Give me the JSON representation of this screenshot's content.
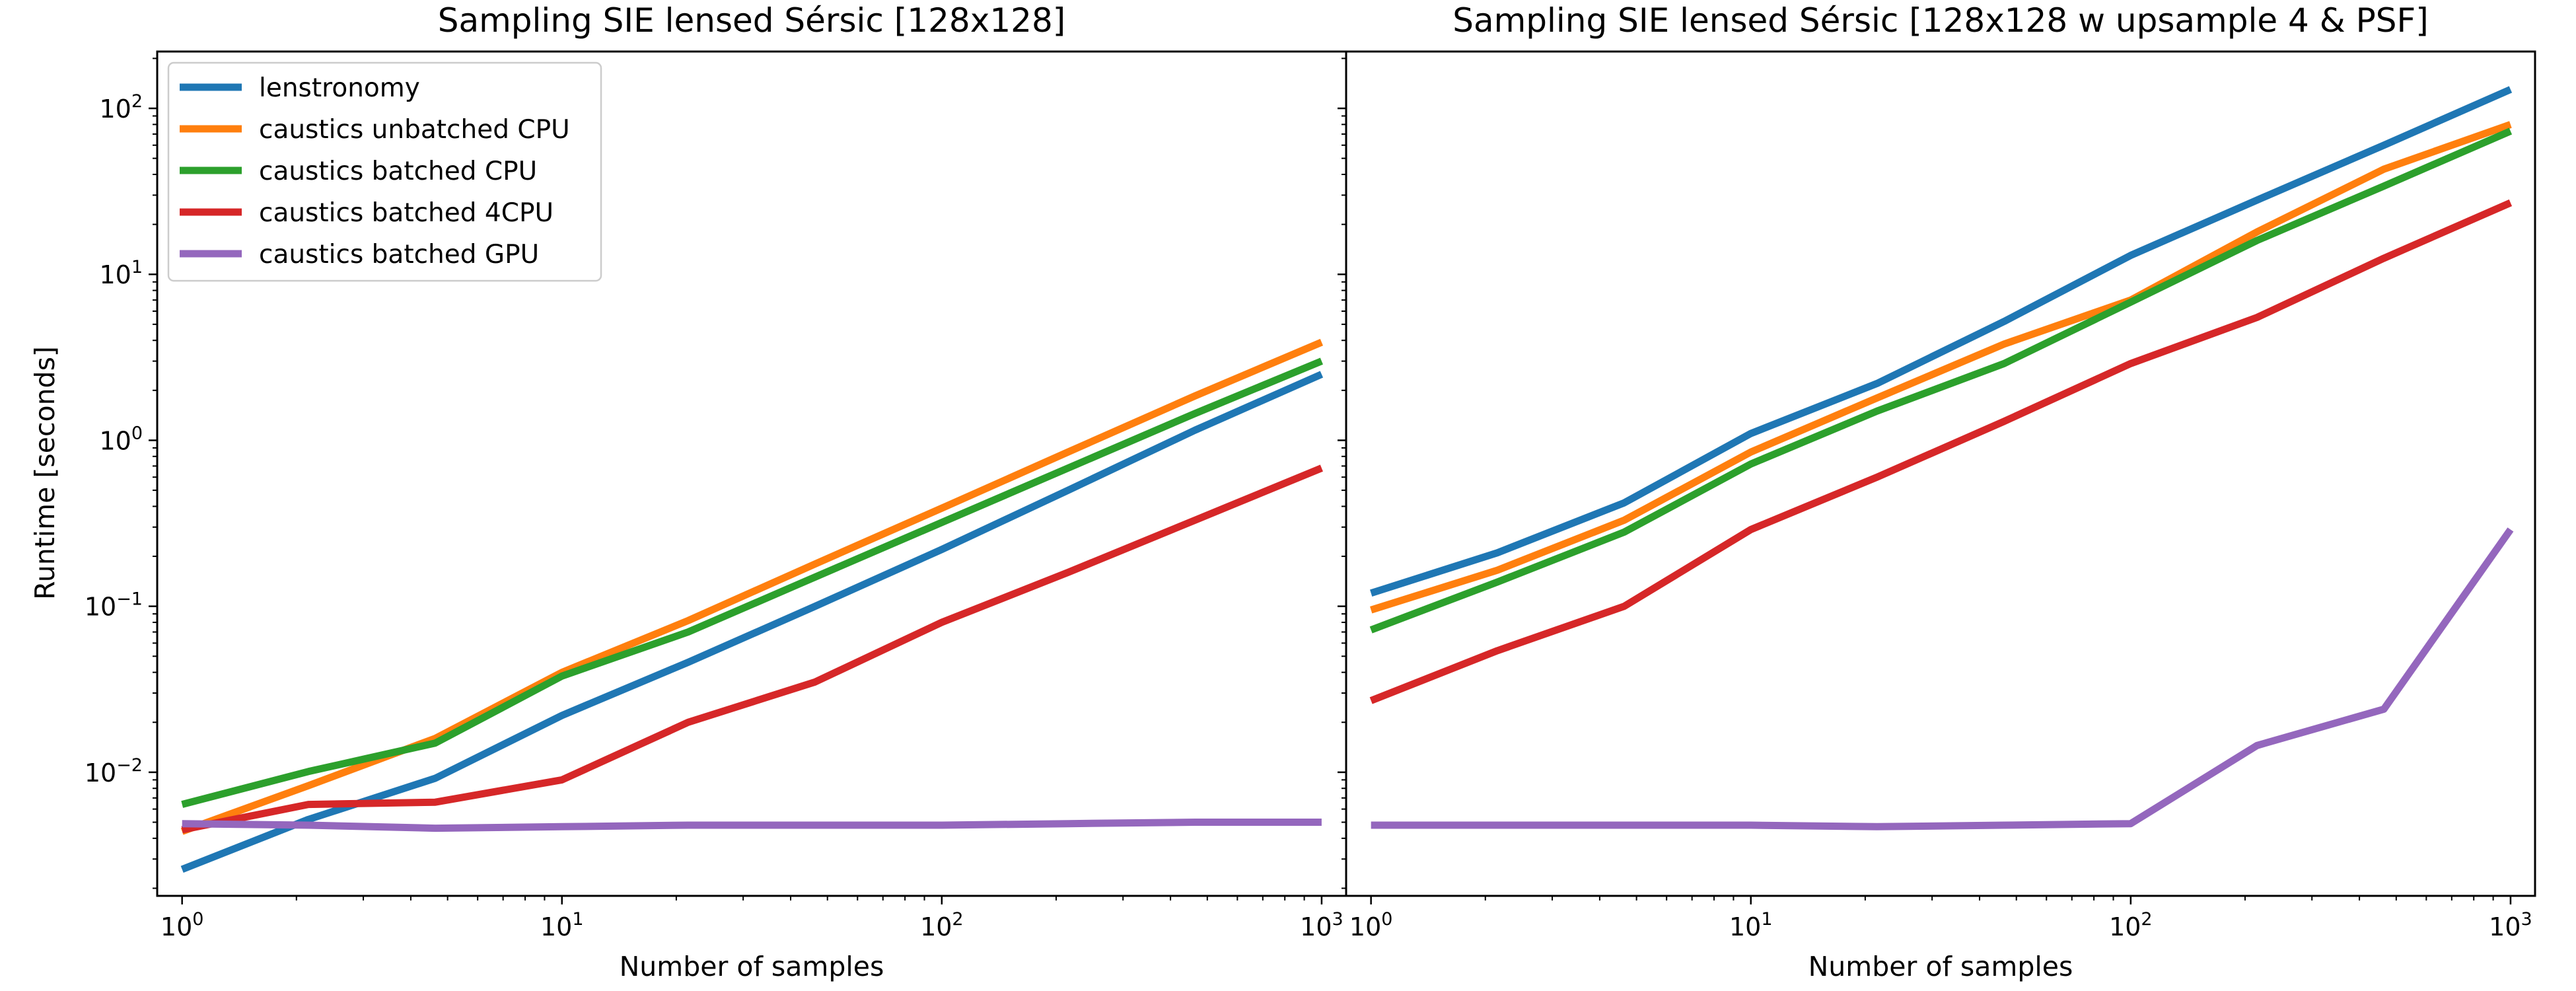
{
  "chart_data": [
    {
      "type": "line",
      "title": "Sampling SIE lensed Sérsic [128x128]",
      "xlabel": "Number of samples",
      "ylabel": "Runtime [seconds]",
      "xscale": "log",
      "yscale": "log",
      "xlim": [
        0.86,
        1160
      ],
      "ylim": [
        0.0018,
        220
      ],
      "xticks": [
        {
          "base": "10",
          "exp": "0",
          "value": 1
        },
        {
          "base": "10",
          "exp": "1",
          "value": 10
        },
        {
          "base": "10",
          "exp": "2",
          "value": 100
        },
        {
          "base": "10",
          "exp": "3",
          "value": 1000
        }
      ],
      "yticks": [
        {
          "base": "10",
          "exp": "−2",
          "value": 0.01
        },
        {
          "base": "10",
          "exp": "−1",
          "value": 0.1
        },
        {
          "base": "10",
          "exp": "0",
          "value": 1
        },
        {
          "base": "10",
          "exp": "1",
          "value": 10
        },
        {
          "base": "10",
          "exp": "2",
          "value": 100
        }
      ],
      "grid": false,
      "legend_position": "upper left",
      "x": [
        1,
        2.15,
        4.64,
        10,
        21.5,
        46.4,
        100,
        215,
        464,
        1000
      ],
      "series": [
        {
          "name": "lenstronomy",
          "color": "#1f77b4",
          "values": [
            0.0026,
            0.0052,
            0.0092,
            0.022,
            0.046,
            0.1,
            0.22,
            0.5,
            1.15,
            2.5
          ]
        },
        {
          "name": "caustics unbatched CPU",
          "color": "#ff7f0e",
          "values": [
            0.0044,
            0.0083,
            0.016,
            0.04,
            0.082,
            0.18,
            0.39,
            0.85,
            1.85,
            3.9
          ]
        },
        {
          "name": "caustics batched CPU",
          "color": "#2ca02c",
          "values": [
            0.0064,
            0.0101,
            0.015,
            0.038,
            0.07,
            0.15,
            0.32,
            0.68,
            1.45,
            3.0
          ]
        },
        {
          "name": "caustics batched 4CPU",
          "color": "#d62728",
          "values": [
            0.0045,
            0.0064,
            0.0066,
            0.009,
            0.02,
            0.035,
            0.08,
            0.16,
            0.33,
            0.68
          ]
        },
        {
          "name": "caustics batched GPU",
          "color": "#9467bd",
          "values": [
            0.0049,
            0.0048,
            0.0046,
            0.0047,
            0.0048,
            0.0048,
            0.0048,
            0.0049,
            0.005,
            0.005
          ]
        }
      ]
    },
    {
      "type": "line",
      "title": "Sampling SIE lensed Sérsic [128x128 w upsample 4 & PSF]",
      "xlabel": "Number of samples",
      "ylabel": "",
      "xscale": "log",
      "yscale": "log",
      "xlim": [
        0.86,
        1160
      ],
      "ylim": [
        0.0018,
        220
      ],
      "xticks": [
        {
          "base": "10",
          "exp": "0",
          "value": 1
        },
        {
          "base": "10",
          "exp": "1",
          "value": 10
        },
        {
          "base": "10",
          "exp": "2",
          "value": 100
        },
        {
          "base": "10",
          "exp": "3",
          "value": 1000
        }
      ],
      "yticks": [],
      "grid": false,
      "x": [
        1,
        2.15,
        4.64,
        10,
        21.5,
        46.4,
        100,
        215,
        464,
        1000
      ],
      "series": [
        {
          "name": "lenstronomy",
          "color": "#1f77b4",
          "values": [
            0.12,
            0.21,
            0.42,
            1.1,
            2.2,
            5.2,
            13,
            28,
            60,
            130
          ]
        },
        {
          "name": "caustics unbatched CPU",
          "color": "#ff7f0e",
          "values": [
            0.095,
            0.165,
            0.33,
            0.85,
            1.8,
            3.8,
            7.0,
            18,
            43,
            80
          ]
        },
        {
          "name": "caustics batched CPU",
          "color": "#2ca02c",
          "values": [
            0.072,
            0.14,
            0.28,
            0.72,
            1.5,
            2.9,
            6.8,
            16,
            34,
            73
          ]
        },
        {
          "name": "caustics batched 4CPU",
          "color": "#d62728",
          "values": [
            0.027,
            0.054,
            0.1,
            0.29,
            0.6,
            1.3,
            2.9,
            5.5,
            12.5,
            27
          ]
        },
        {
          "name": "caustics batched GPU",
          "color": "#9467bd",
          "values": [
            0.0048,
            0.0048,
            0.0048,
            0.0048,
            0.0047,
            0.0048,
            0.0049,
            0.0145,
            0.024,
            0.29
          ]
        }
      ]
    }
  ]
}
